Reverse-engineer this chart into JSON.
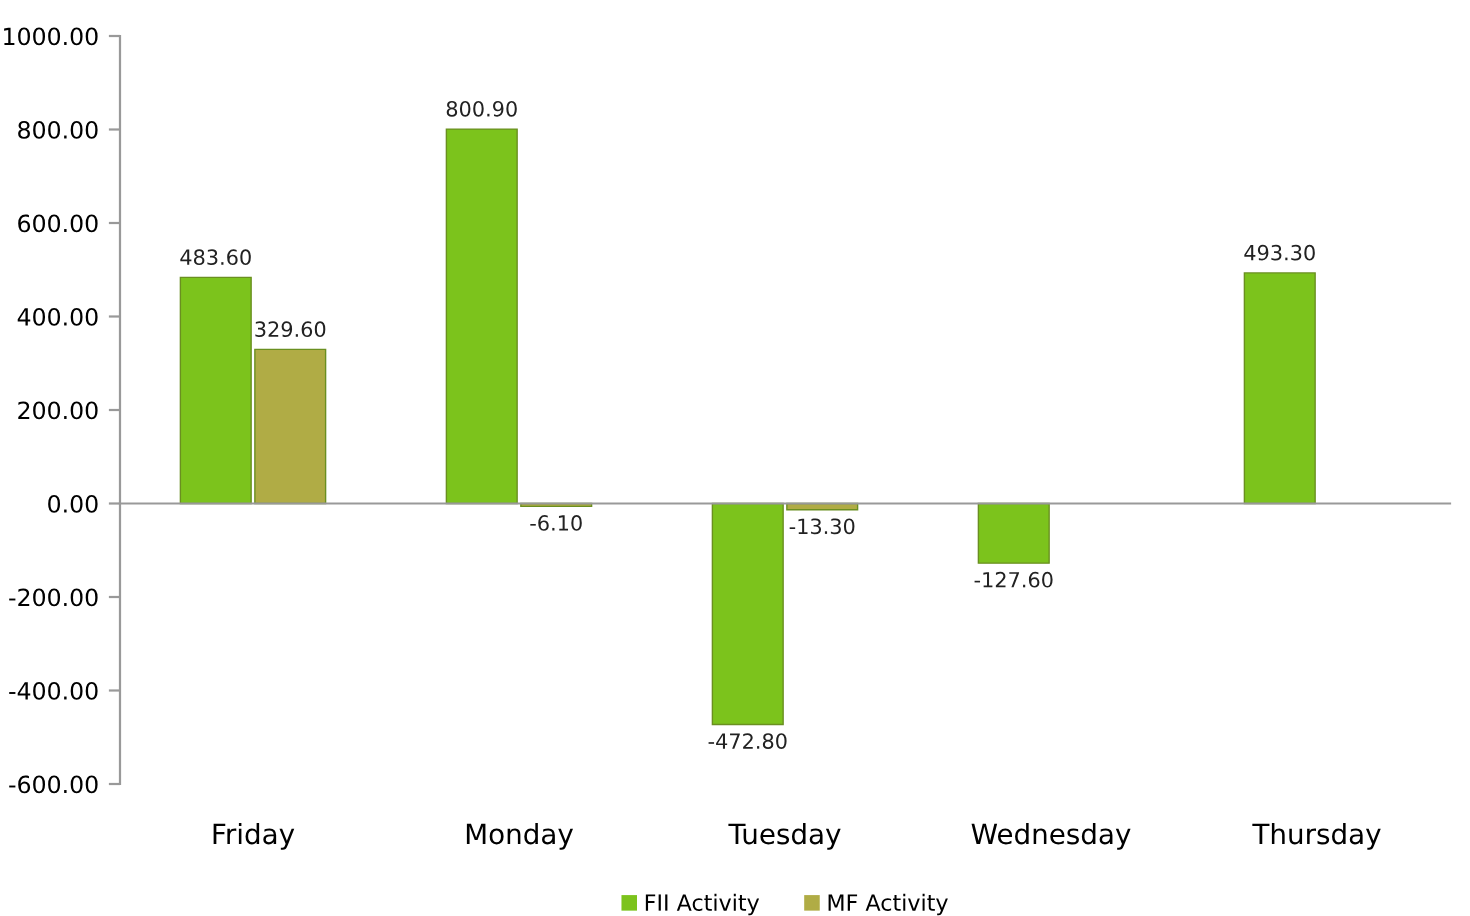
{
  "chart_data": {
    "type": "bar",
    "categories": [
      "Friday",
      "Monday",
      "Tuesday",
      "Wednesday",
      "Thursday"
    ],
    "series": [
      {
        "name": "FII Activity",
        "color": "#7cc31c",
        "values": [
          483.6,
          800.9,
          -472.8,
          -127.6,
          493.3
        ],
        "value_labels": [
          "483.60",
          "800.90",
          "-472.80",
          "-127.60",
          "493.30"
        ]
      },
      {
        "name": "MF Activity",
        "color": "#b0ac45",
        "values": [
          329.6,
          -6.1,
          -13.3,
          null,
          null
        ],
        "value_labels": [
          "329.60",
          "-6.10",
          "-13.30",
          null,
          null
        ]
      }
    ],
    "ylim": [
      -600,
      1000
    ],
    "yticks": [
      {
        "value": -600,
        "label": "-600.00"
      },
      {
        "value": -400,
        "label": "-400.00"
      },
      {
        "value": -200,
        "label": "-200.00"
      },
      {
        "value": 0,
        "label": "0.00"
      },
      {
        "value": 200,
        "label": "200.00"
      },
      {
        "value": 400,
        "label": "400.00"
      },
      {
        "value": 600,
        "label": "600.00"
      },
      {
        "value": 800,
        "label": "800.00"
      },
      {
        "value": 1000,
        "label": "1000.00"
      }
    ],
    "legend": "bottom"
  }
}
